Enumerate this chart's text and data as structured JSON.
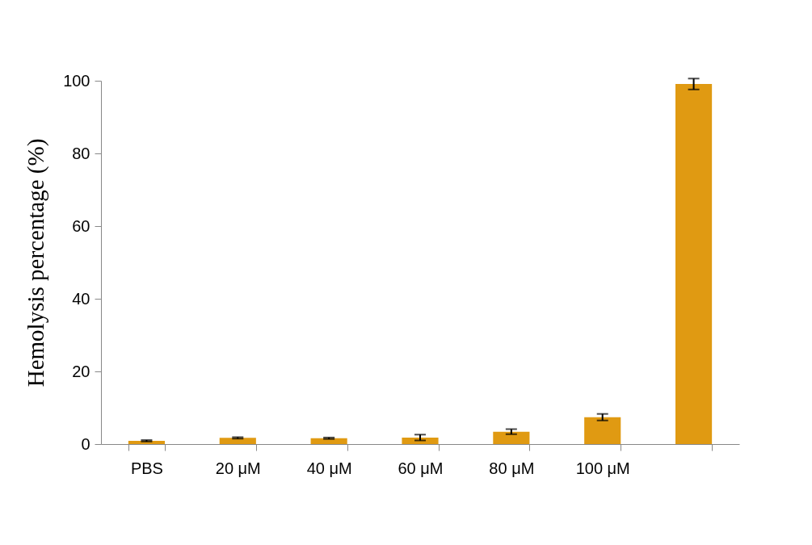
{
  "chart_data": {
    "type": "bar",
    "ylabel": "Hemolysis  percentage (%)",
    "categories": [
      "PBS",
      "20 μM",
      "40 μM",
      "60 μM",
      "80 μM",
      "100 μM",
      null
    ],
    "values": [
      0.9,
      1.7,
      1.6,
      1.8,
      3.4,
      7.4,
      99.1
    ],
    "errors": [
      0.2,
      0.2,
      0.2,
      0.8,
      0.7,
      0.9,
      1.5
    ],
    "color": "#e09a12",
    "ylim": [
      0,
      100
    ],
    "yticks": [
      0,
      20,
      40,
      60,
      80,
      100
    ],
    "grid": false
  }
}
